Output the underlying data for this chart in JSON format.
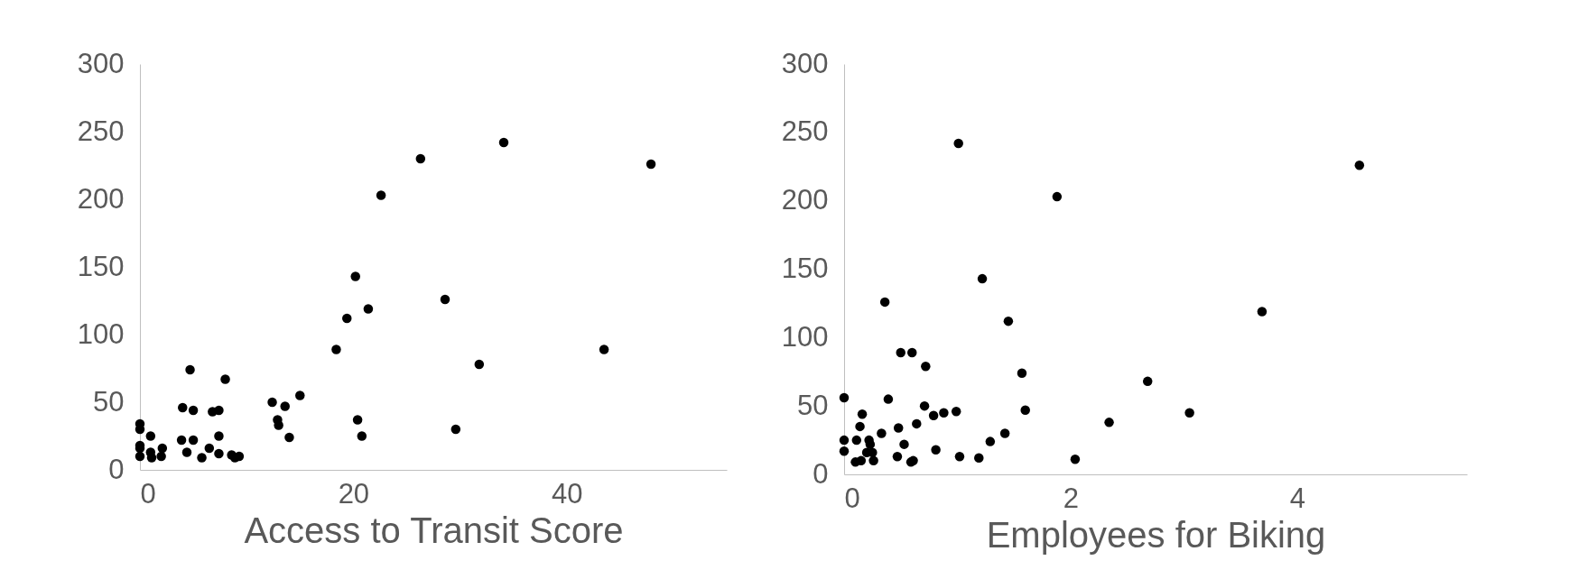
{
  "chart_data": [
    {
      "type": "scatter",
      "xlabel": "Access to Transit Score",
      "xlim": [
        0,
        55
      ],
      "xticks": [
        0,
        20,
        40
      ],
      "ylim": [
        0,
        300
      ],
      "yticks": [
        0,
        50,
        100,
        150,
        200,
        250,
        300
      ],
      "grid": false,
      "marker": "circle",
      "series": [
        {
          "color": "#000000",
          "x": [
            34.1,
            26.3,
            47.9,
            22.6,
            20.2,
            28.6,
            21.4,
            19.4,
            18.4,
            43.5,
            31.8,
            4.7,
            8.0,
            15.0,
            12.4,
            13.6,
            4.0,
            5.0,
            6.8,
            7.4,
            12.9,
            20.4,
            13.0,
            0,
            0,
            29.6,
            1.0,
            7.4,
            20.8,
            14.0,
            3.9,
            5.0,
            0,
            0,
            2.1,
            6.5,
            4.4,
            1.0,
            7.4,
            0,
            2.0,
            1.1,
            5.8,
            8.6,
            8.9,
            9.3
          ],
          "values": [
            242,
            230,
            226,
            203,
            143,
            126,
            119,
            112,
            89,
            89,
            78,
            74,
            67,
            55,
            50,
            47,
            46,
            44,
            43,
            44,
            37,
            37,
            33,
            34,
            30,
            30,
            25,
            25,
            25,
            24,
            22,
            22,
            18,
            16,
            16,
            16,
            13,
            13,
            12,
            10,
            10,
            9,
            9,
            11,
            9,
            10
          ]
        }
      ]
    },
    {
      "type": "scatter",
      "xlabel": "Employees for Biking",
      "xlim": [
        0,
        5.5
      ],
      "xticks": [
        0,
        2,
        4
      ],
      "ylim": [
        0,
        300
      ],
      "yticks": [
        0,
        50,
        100,
        150,
        200,
        250,
        300
      ],
      "grid": false,
      "marker": "circle",
      "series": [
        {
          "color": "#000000",
          "x": [
            1.01,
            4.55,
            1.88,
            1.22,
            0.36,
            3.69,
            1.45,
            0.5,
            0.6,
            0.72,
            1.57,
            2.68,
            0,
            0.39,
            0.71,
            1.6,
            0.99,
            0.88,
            0.79,
            3.05,
            0.16,
            2.34,
            0.64,
            0.14,
            0.48,
            0.33,
            1.42,
            0,
            0.11,
            0.22,
            1.29,
            0.53,
            0.23,
            0,
            0.25,
            0.2,
            0.81,
            0.47,
            1.02,
            1.19,
            2.04,
            0.61,
            0.59,
            0.1,
            0.15,
            0.26
          ],
          "values": [
            242,
            226,
            203,
            143,
            126,
            119,
            112,
            89,
            89,
            79,
            74,
            68,
            56,
            55,
            50,
            47,
            46,
            45,
            43,
            45,
            44,
            38,
            37,
            35,
            34,
            30,
            30,
            25,
            25,
            25,
            24,
            22,
            22,
            17,
            16,
            16,
            18,
            13,
            13,
            12,
            11,
            10,
            9,
            9,
            10,
            10
          ]
        }
      ]
    }
  ]
}
